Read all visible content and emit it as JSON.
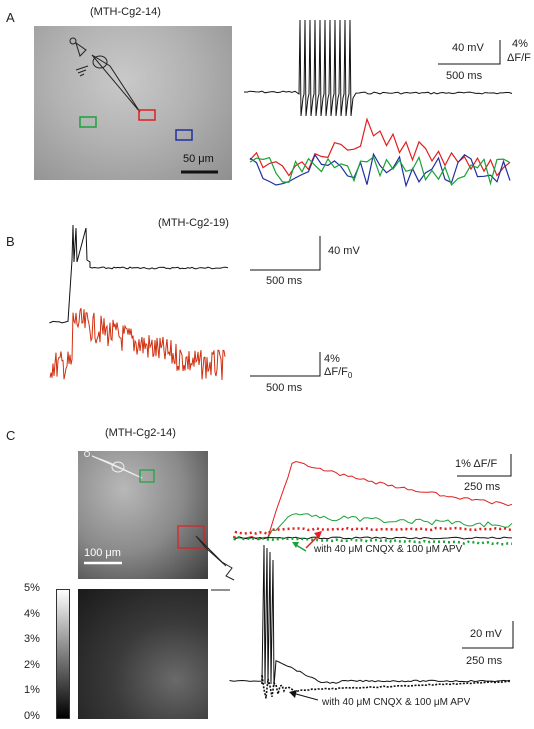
{
  "panels": {
    "a": {
      "label": "A",
      "cell_id": "(MTH-Cg2-14)",
      "img_scale": "50 μm",
      "scale_v": "40 mV",
      "scale_h": "500 ms",
      "df_line1": "4%",
      "df_line2": "ΔF/F",
      "roi_colors": {
        "red": "#e02020",
        "green": "#1aa33a",
        "blue": "#2030a0"
      }
    },
    "b": {
      "label": "B",
      "cell_id": "(MTH-Cg2-19)",
      "scale_v": "40 mV",
      "scale_h1": "500 ms",
      "df_line1": "4%",
      "df_line2": "ΔF/F",
      "df_sub": "0",
      "scale_h2": "500 ms",
      "trace_color": "#d03010"
    },
    "c": {
      "label": "C",
      "cell_id": "(MTH-Cg2-14)",
      "img_scale": "100 μm",
      "colorbar_ticks": [
        "5%",
        "4%",
        "3%",
        "2%",
        "1%",
        "0%"
      ],
      "scale_df": "1% ΔF/F",
      "scale_h1": "250 ms",
      "scale_v": "20 mV",
      "scale_h2": "250 ms",
      "annot_ca": "with 40 μM CNQX & 100 μM APV",
      "annot_vm": "with 40 μM CNQX & 100 μM APV"
    }
  }
}
